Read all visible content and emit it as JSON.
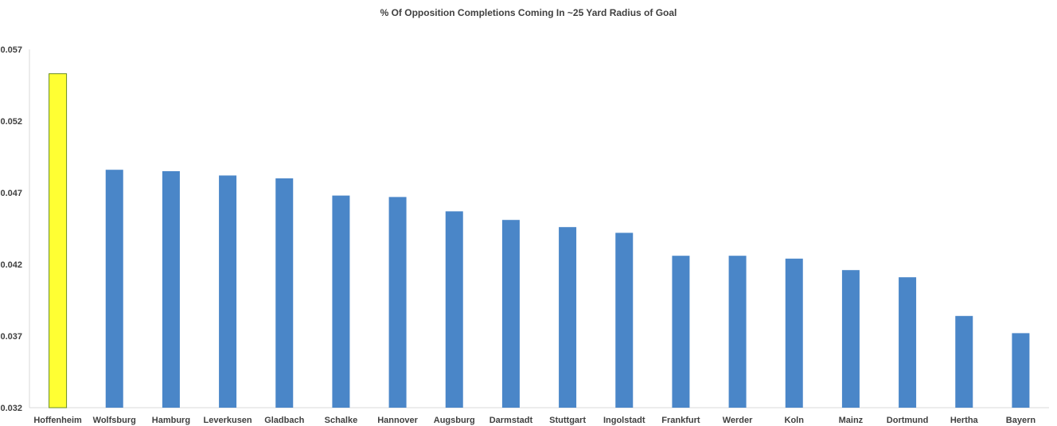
{
  "chart_data": {
    "type": "bar",
    "title": "% Of Opposition Completions Coming In ~25 Yard Radius of Goal",
    "xlabel": "",
    "ylabel": "",
    "ylim": [
      0.032,
      0.057
    ],
    "yticks": [
      "0.032",
      "0.037",
      "0.042",
      "0.047",
      "0.052",
      "0.057"
    ],
    "categories": [
      "Hoffenheim",
      "Wolfsburg",
      "Hamburg",
      "Leverkusen",
      "Gladbach",
      "Schalke",
      "Hannover",
      "Augsburg",
      "Darmstadt",
      "Stuttgart",
      "Ingolstadt",
      "Frankfurt",
      "Werder",
      "Koln",
      "Mainz",
      "Dortmund",
      "Hertha",
      "Bayern"
    ],
    "values": [
      0.0553,
      0.0486,
      0.0485,
      0.0482,
      0.048,
      0.0468,
      0.0467,
      0.0457,
      0.0451,
      0.0446,
      0.0442,
      0.0426,
      0.0426,
      0.0424,
      0.0416,
      0.0411,
      0.0384,
      0.0372
    ],
    "colors": {
      "default": "#4a86c8",
      "highlight": "#ffff33",
      "highlight_stroke": "#6b8e23",
      "axis": "#d9d9d9"
    },
    "highlight_index": 0,
    "grid": false,
    "legend": "none"
  }
}
